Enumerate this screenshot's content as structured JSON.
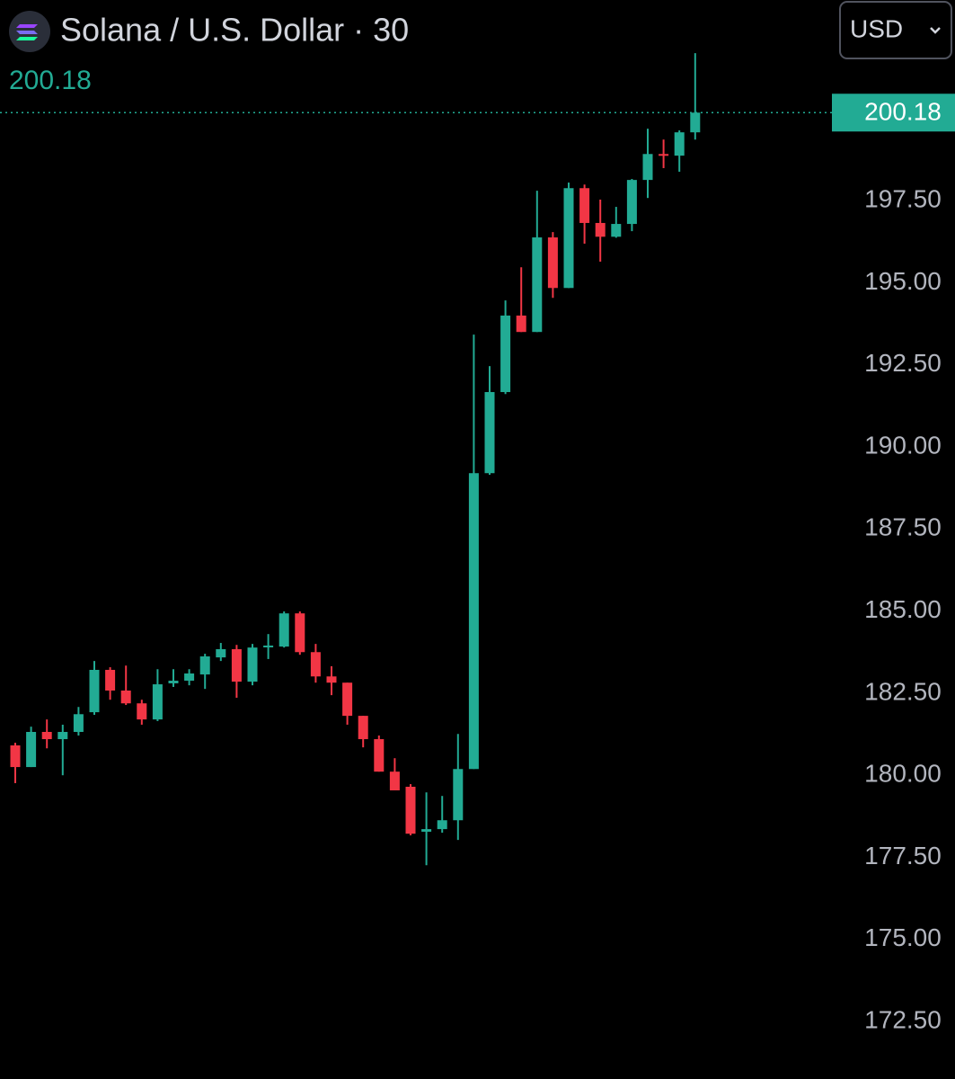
{
  "chart_data": {
    "type": "candlestick",
    "title": "Solana / U.S. Dollar · 30",
    "currency": "USD",
    "last_price": 200.18,
    "up_color": "#22ab94",
    "down_color": "#f23645",
    "open": [
      180.91,
      180.25,
      181.32,
      181.1,
      181.32,
      181.92,
      183.21,
      182.58,
      182.19,
      181.7,
      182.8,
      182.88,
      183.07,
      183.59,
      183.84,
      182.85,
      183.92,
      183.92,
      184.93,
      183.75,
      183.01,
      182.82,
      181.81,
      181.1,
      180.11,
      179.65,
      178.28,
      178.36,
      178.63,
      180.19,
      189.2,
      191.67,
      194.0,
      193.5,
      196.38,
      194.84,
      197.88,
      196.82,
      196.4,
      196.79,
      198.13,
      198.92,
      198.87,
      199.58
    ],
    "high": [
      180.99,
      181.48,
      181.7,
      181.54,
      182.08,
      183.48,
      183.29,
      183.34,
      182.3,
      183.23,
      183.23,
      183.23,
      183.7,
      184.03,
      183.97,
      184.0,
      184.3,
      184.99,
      184.99,
      184.0,
      183.32,
      182.82,
      181.81,
      181.21,
      180.52,
      179.73,
      179.48,
      179.37,
      181.26,
      193.42,
      192.46,
      194.46,
      195.47,
      197.8,
      196.54,
      198.05,
      197.99,
      197.53,
      197.31,
      198.16,
      199.69,
      199.36,
      199.64,
      201.99
    ],
    "low": [
      179.76,
      180.25,
      180.82,
      180.0,
      181.21,
      181.84,
      182.3,
      182.14,
      181.54,
      181.65,
      182.69,
      182.74,
      182.63,
      183.48,
      182.36,
      182.74,
      183.54,
      183.89,
      183.67,
      182.82,
      182.44,
      181.54,
      180.85,
      180.11,
      179.54,
      178.17,
      177.26,
      178.25,
      178.03,
      180.19,
      189.15,
      191.61,
      193.5,
      193.5,
      194.54,
      194.84,
      196.19,
      195.64,
      196.37,
      196.57,
      197.58,
      198.49,
      198.38,
      199.36
    ],
    "close": [
      180.25,
      181.32,
      181.1,
      181.32,
      181.86,
      183.21,
      182.58,
      182.19,
      181.7,
      182.77,
      182.88,
      183.1,
      183.62,
      183.84,
      182.85,
      183.89,
      183.95,
      184.93,
      183.75,
      183.01,
      182.82,
      181.81,
      181.1,
      180.11,
      179.54,
      178.22,
      178.36,
      178.63,
      180.19,
      189.2,
      191.67,
      194.0,
      193.5,
      196.38,
      194.84,
      197.88,
      196.82,
      196.4,
      196.79,
      198.13,
      198.92,
      198.87,
      199.58,
      200.18
    ],
    "ylim": [
      170.75,
      203.61
    ],
    "yticks": [
      {
        "value": 172.5,
        "label": "172.50"
      },
      {
        "value": 175,
        "label": "175.00"
      },
      {
        "value": 177.5,
        "label": "177.50"
      },
      {
        "value": 180,
        "label": "180.00"
      },
      {
        "value": 182.5,
        "label": "182.50"
      },
      {
        "value": 185,
        "label": "185.00"
      },
      {
        "value": 187.5,
        "label": "187.50"
      },
      {
        "value": 190,
        "label": "190.00"
      },
      {
        "value": 192.5,
        "label": "192.50"
      },
      {
        "value": 195,
        "label": "195.00"
      },
      {
        "value": 197.5,
        "label": "197.50"
      }
    ]
  }
}
